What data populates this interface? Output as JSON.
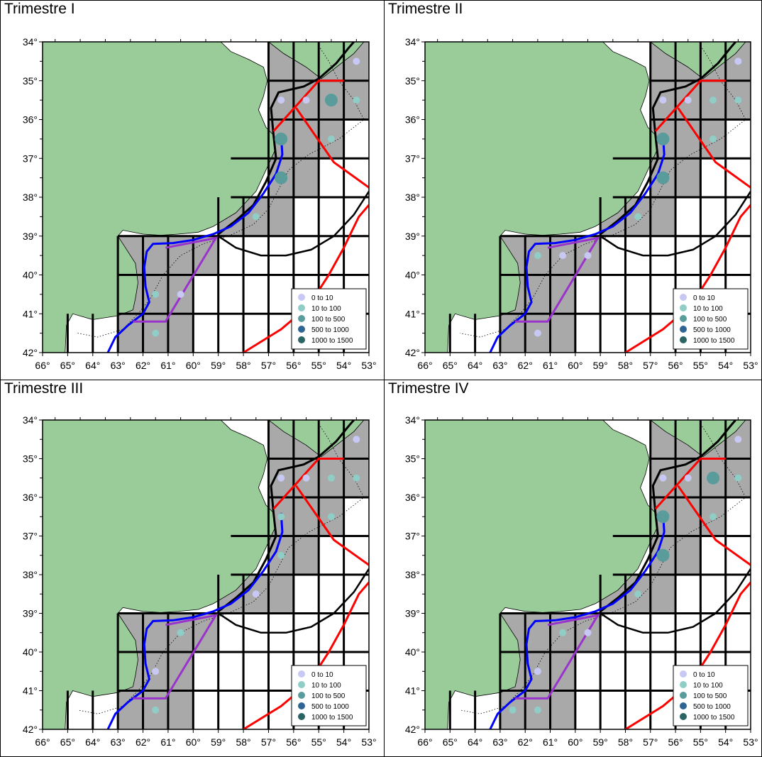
{
  "panels": [
    {
      "title": "Trimestre I",
      "circles": [
        {
          "lon": -56.5,
          "lat": -35.5,
          "cls": 0
        },
        {
          "lon": -55.5,
          "lat": -35.5,
          "cls": 0
        },
        {
          "lon": -54.5,
          "lat": -35.5,
          "cls": 2
        },
        {
          "lon": -53.5,
          "lat": -35.5,
          "cls": 1
        },
        {
          "lon": -53.5,
          "lat": -34.5,
          "cls": 0
        },
        {
          "lon": -56.5,
          "lat": -36.5,
          "cls": 2
        },
        {
          "lon": -54.5,
          "lat": -36.5,
          "cls": 1
        },
        {
          "lon": -56.5,
          "lat": -37.5,
          "cls": 2
        },
        {
          "lon": -57.5,
          "lat": -38.5,
          "cls": 1
        },
        {
          "lon": -60.5,
          "lat": -40.5,
          "cls": 0
        },
        {
          "lon": -61.5,
          "lat": -40.5,
          "cls": 1
        },
        {
          "lon": -61.5,
          "lat": -41.5,
          "cls": 1
        }
      ]
    },
    {
      "title": "Trimestre II",
      "circles": [
        {
          "lon": -56.5,
          "lat": -35.5,
          "cls": 0
        },
        {
          "lon": -55.5,
          "lat": -35.5,
          "cls": 0
        },
        {
          "lon": -54.5,
          "lat": -35.5,
          "cls": 1
        },
        {
          "lon": -53.5,
          "lat": -35.5,
          "cls": 1
        },
        {
          "lon": -53.5,
          "lat": -34.5,
          "cls": 0
        },
        {
          "lon": -56.5,
          "lat": -36.5,
          "cls": 2
        },
        {
          "lon": -54.5,
          "lat": -36.5,
          "cls": 1
        },
        {
          "lon": -56.5,
          "lat": -37.5,
          "cls": 2
        },
        {
          "lon": -57.5,
          "lat": -38.5,
          "cls": 1
        },
        {
          "lon": -61.5,
          "lat": -39.5,
          "cls": 1
        },
        {
          "lon": -60.5,
          "lat": -39.5,
          "cls": 0
        },
        {
          "lon": -59.5,
          "lat": -39.5,
          "cls": 0
        },
        {
          "lon": -61.5,
          "lat": -41.5,
          "cls": 0
        }
      ]
    },
    {
      "title": "Trimestre III",
      "circles": [
        {
          "lon": -56.5,
          "lat": -35.5,
          "cls": 0
        },
        {
          "lon": -55.5,
          "lat": -35.5,
          "cls": 0
        },
        {
          "lon": -54.5,
          "lat": -35.5,
          "cls": 1
        },
        {
          "lon": -53.5,
          "lat": -35.5,
          "cls": 1
        },
        {
          "lon": -53.5,
          "lat": -34.5,
          "cls": 0
        },
        {
          "lon": -56.5,
          "lat": -36.5,
          "cls": 1
        },
        {
          "lon": -54.5,
          "lat": -36.5,
          "cls": 1
        },
        {
          "lon": -56.5,
          "lat": -37.5,
          "cls": 1
        },
        {
          "lon": -57.5,
          "lat": -38.5,
          "cls": 0
        },
        {
          "lon": -60.5,
          "lat": -39.5,
          "cls": 1
        },
        {
          "lon": -61.5,
          "lat": -40.5,
          "cls": 0
        },
        {
          "lon": -61.5,
          "lat": -41.5,
          "cls": 1
        }
      ]
    },
    {
      "title": "Trimestre IV",
      "circles": [
        {
          "lon": -56.5,
          "lat": -35.5,
          "cls": 0
        },
        {
          "lon": -55.5,
          "lat": -35.5,
          "cls": 0
        },
        {
          "lon": -54.5,
          "lat": -35.5,
          "cls": 2
        },
        {
          "lon": -53.5,
          "lat": -35.5,
          "cls": 1
        },
        {
          "lon": -53.5,
          "lat": -34.5,
          "cls": 0
        },
        {
          "lon": -56.5,
          "lat": -36.5,
          "cls": 2
        },
        {
          "lon": -54.5,
          "lat": -36.5,
          "cls": 1
        },
        {
          "lon": -56.5,
          "lat": -37.5,
          "cls": 2
        },
        {
          "lon": -57.5,
          "lat": -38.5,
          "cls": 1
        },
        {
          "lon": -60.5,
          "lat": -39.5,
          "cls": 1
        },
        {
          "lon": -59.5,
          "lat": -39.5,
          "cls": 0
        },
        {
          "lon": -61.5,
          "lat": -40.5,
          "cls": 0
        },
        {
          "lon": -62.5,
          "lat": -41.5,
          "cls": 1
        },
        {
          "lon": -61.5,
          "lat": -41.5,
          "cls": 1
        }
      ]
    }
  ],
  "legend": {
    "entries": [
      {
        "label": "0  to  10",
        "color": "#c8c8f4"
      },
      {
        "label": "10  to  100",
        "color": "#8fcdc6"
      },
      {
        "label": "100  to  500",
        "color": "#5a9c9c"
      },
      {
        "label": "500  to  1000",
        "color": "#2f6494"
      },
      {
        "label": "1000  to  1500",
        "color": "#2a6464"
      }
    ]
  },
  "axes": {
    "lon_ticks": [
      "66°",
      "65°",
      "64°",
      "63°",
      "62°",
      "61°",
      "60°",
      "59°",
      "58°",
      "57°",
      "56°",
      "55°",
      "54°",
      "53°"
    ],
    "lat_ticks": [
      "34°",
      "35°",
      "36°",
      "37°",
      "38°",
      "39°",
      "40°",
      "41°",
      "42°"
    ],
    "lon_range": [
      -66,
      -53
    ],
    "lat_range": [
      -42,
      -34
    ]
  },
  "colors": {
    "land": "#99cc99",
    "shelf_cells": "#a9a9a9",
    "grid": "#000000",
    "blue_line": "#0000ff",
    "purple_line": "#9933cc",
    "red_line": "#ff0000",
    "black_line": "#000000"
  }
}
